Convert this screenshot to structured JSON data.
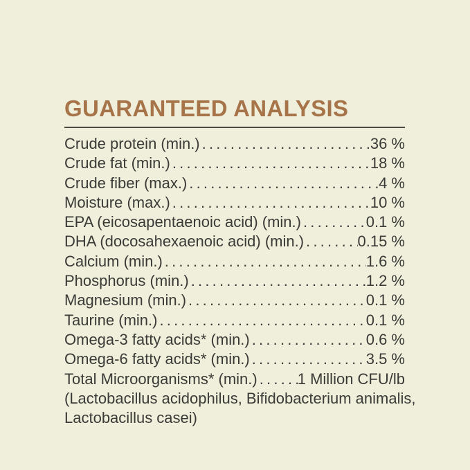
{
  "colors": {
    "background": "#f0efdc",
    "accent": "#a77449",
    "text": "#3a3a36",
    "rule": "#4b4a43"
  },
  "header": {
    "title": "GUARANTEED ANALYSIS"
  },
  "analysis": {
    "rows": [
      {
        "label": "Crude protein (min.)",
        "value": "36 %"
      },
      {
        "label": "Crude fat (min.)",
        "value": "18 %"
      },
      {
        "label": "Crude fiber (max.)",
        "value": "4 %"
      },
      {
        "label": "Moisture (max.)",
        "value": "10 %"
      },
      {
        "label": "EPA (eicosapentaenoic acid) (min.)",
        "value": "0.1 %"
      },
      {
        "label": "DHA (docosahexaenoic acid) (min.)",
        "value": "0.15 %"
      },
      {
        "label": "Calcium (min.)",
        "value": "1.6 %"
      },
      {
        "label": "Phosphorus (min.)",
        "value": "1.2 %"
      },
      {
        "label": "Magnesium (min.)",
        "value": "0.1 %"
      },
      {
        "label": "Taurine (min.)",
        "value": "0.1 %"
      },
      {
        "label": "Omega-3 fatty acids* (min.)",
        "value": "0.6 %"
      },
      {
        "label": "Omega-6 fatty acids* (min.)",
        "value": "3.5 %"
      },
      {
        "label": "Total Microorganisms* (min.)",
        "value": "1 Million CFU/lb"
      }
    ],
    "footnote_lines": [
      "(Lactobacillus acidophilus, Bifidobacterium animalis,",
      "Lactobacillus casei)"
    ]
  }
}
